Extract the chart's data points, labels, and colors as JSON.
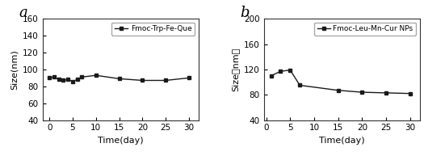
{
  "chart_a": {
    "label": "Fmoc-Trp-Fe-Que",
    "x": [
      0,
      1,
      2,
      3,
      4,
      5,
      6,
      7,
      10,
      15,
      20,
      25,
      30
    ],
    "y": [
      90,
      91,
      88,
      87,
      88,
      86,
      88,
      91,
      93,
      89,
      87,
      87,
      90
    ],
    "xlabel": "Time(day)",
    "ylabel": "Size(nm)",
    "ylim": [
      40,
      160
    ],
    "yticks": [
      40,
      60,
      80,
      100,
      120,
      140,
      160
    ],
    "xticks": [
      0,
      5,
      10,
      15,
      20,
      25,
      30
    ],
    "xlim": [
      -1.5,
      32
    ],
    "panel_label": "a"
  },
  "chart_b": {
    "label": "Fmoc-Leu-Mn-Cur NPs",
    "x": [
      1,
      3,
      5,
      7,
      15,
      20,
      25,
      30
    ],
    "y": [
      110,
      117,
      119,
      95,
      87,
      84,
      83,
      82
    ],
    "xlabel": "Time(day)",
    "ylabel": "Size（nm）",
    "ylim": [
      40,
      200
    ],
    "yticks": [
      40,
      80,
      120,
      160,
      200
    ],
    "xticks": [
      0,
      5,
      10,
      15,
      20,
      25,
      30
    ],
    "xlim": [
      -0.5,
      32
    ],
    "panel_label": "b"
  },
  "line_color": "#1a1a1a",
  "marker": "s",
  "markersize": 3.5,
  "linewidth": 1.0,
  "legend_fontsize": 6.5,
  "axis_label_fontsize": 8,
  "tick_fontsize": 7.5,
  "panel_label_fontsize": 13
}
